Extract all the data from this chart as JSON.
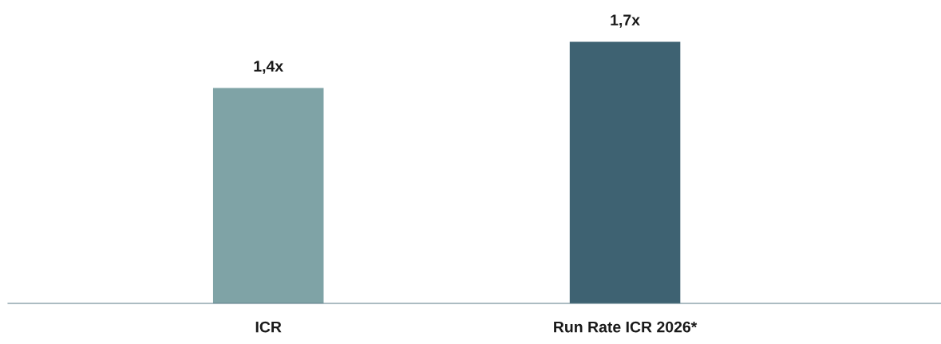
{
  "chart_data": {
    "type": "bar",
    "categories": [
      "ICR",
      "Run Rate ICR 2026*"
    ],
    "values": [
      1.4,
      1.7
    ],
    "colors": [
      "#7fa3a6",
      "#3e6272"
    ],
    "value_labels": [
      "1,4x",
      "1,7x"
    ]
  }
}
